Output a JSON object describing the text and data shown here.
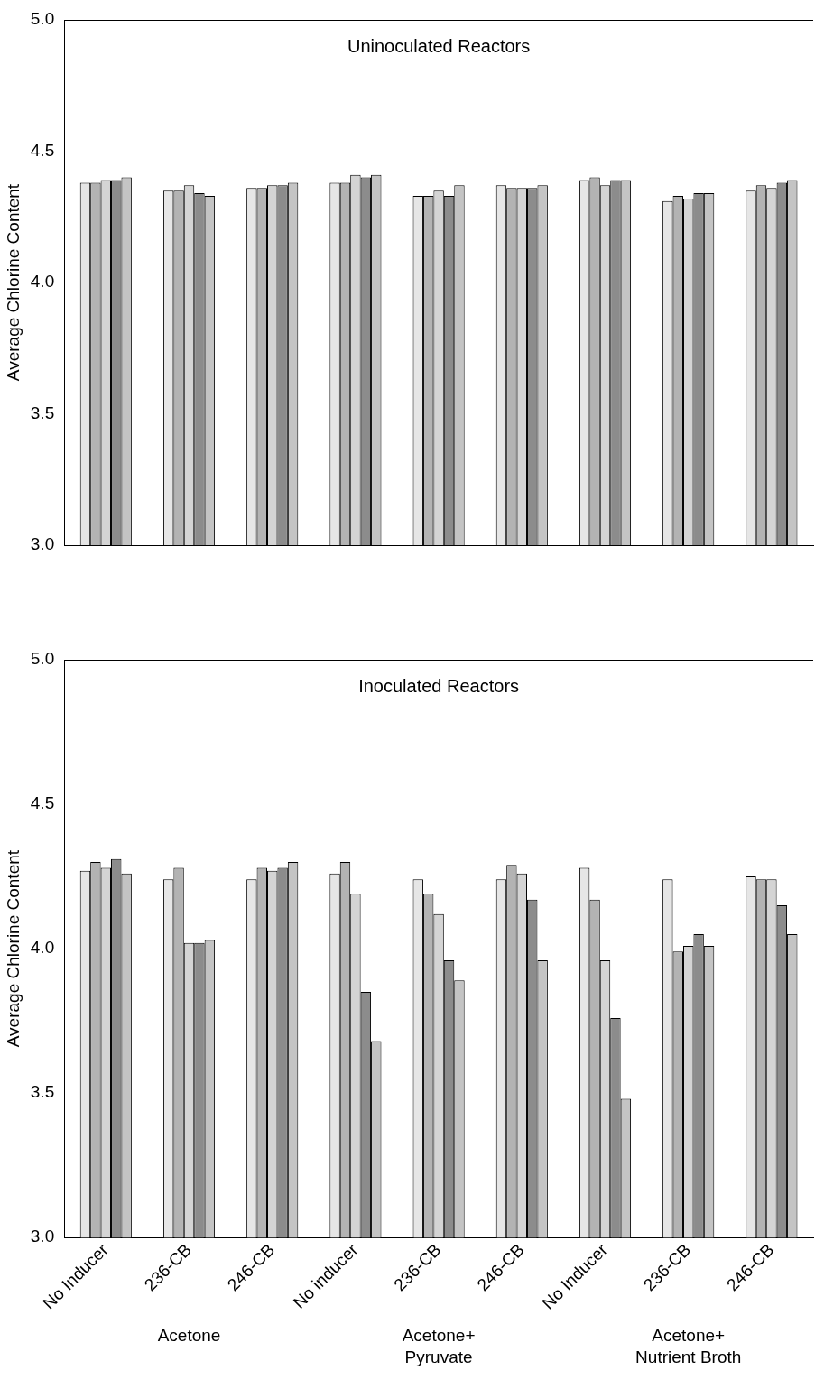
{
  "chart_data": [
    {
      "type": "bar",
      "title": "Uninoculated Reactors",
      "ylabel": "Average Chlorine Content",
      "categories": [
        null,
        null,
        null,
        null,
        null,
        null,
        null,
        null,
        null
      ],
      "series": [
        {
          "color": "#e6e6e6",
          "values": [
            4.38,
            4.35,
            4.36,
            4.38,
            4.33,
            4.37,
            4.39,
            4.31,
            4.35
          ]
        },
        {
          "color": "#b3b3b3",
          "values": [
            4.38,
            4.35,
            4.36,
            4.38,
            4.33,
            4.36,
            4.4,
            4.33,
            4.37
          ]
        },
        {
          "color": "#d4d4d4",
          "values": [
            4.39,
            4.37,
            4.37,
            4.41,
            4.35,
            4.36,
            4.37,
            4.32,
            4.36
          ]
        },
        {
          "color": "#8c8c8c",
          "values": [
            4.39,
            4.34,
            4.37,
            4.4,
            4.33,
            4.36,
            4.39,
            4.34,
            4.38
          ]
        },
        {
          "color": "#c4c4c4",
          "values": [
            4.4,
            4.33,
            4.38,
            4.41,
            4.37,
            4.37,
            4.39,
            4.34,
            4.39
          ]
        }
      ],
      "ylim": [
        3,
        5
      ],
      "yticks": [
        {
          "value": 3,
          "label": "3.0"
        },
        {
          "value": 3.5,
          "label": "3.5"
        },
        {
          "value": 4,
          "label": "4.0"
        },
        {
          "value": 4.5,
          "label": "4.5"
        },
        {
          "value": 5,
          "label": "5.0"
        }
      ],
      "tick_labels": "y",
      "grid": false,
      "legend": false
    },
    {
      "type": "bar",
      "title": "Inoculated Reactors",
      "ylabel": "Average Chlorine Content",
      "categories": [
        "No Inducer",
        "236-CB",
        "246-CB",
        "No inducer",
        "236-CB",
        "246-CB",
        "No Inducer",
        "236-CB",
        "246-CB"
      ],
      "series": [
        {
          "color": "#e6e6e6",
          "values": [
            4.27,
            4.24,
            4.24,
            4.26,
            4.24,
            4.24,
            4.28,
            4.24,
            4.25
          ]
        },
        {
          "color": "#b3b3b3",
          "values": [
            4.3,
            4.28,
            4.28,
            4.3,
            4.19,
            4.29,
            4.17,
            3.99,
            4.24
          ]
        },
        {
          "color": "#d4d4d4",
          "values": [
            4.28,
            4.02,
            4.27,
            4.19,
            4.12,
            4.26,
            3.96,
            4.01,
            4.24
          ]
        },
        {
          "color": "#8c8c8c",
          "values": [
            4.31,
            4.02,
            4.28,
            3.85,
            3.96,
            4.17,
            3.76,
            4.05,
            4.15
          ]
        },
        {
          "color": "#c4c4c4",
          "values": [
            4.26,
            4.03,
            4.3,
            3.68,
            3.89,
            3.96,
            3.48,
            4.01,
            4.05
          ]
        }
      ],
      "ylim": [
        3,
        5
      ],
      "yticks": [
        {
          "value": 3,
          "label": "3.0"
        },
        {
          "value": 3.5,
          "label": "3.5"
        },
        {
          "value": 4,
          "label": "4.0"
        },
        {
          "value": 4.5,
          "label": "4.5"
        },
        {
          "value": 5,
          "label": "5.0"
        }
      ],
      "grid": false,
      "legend": false,
      "annotations": [
        "Acetone",
        "Acetone+ Pyruvate",
        "Acetone+ Nutrient Broth"
      ]
    }
  ]
}
